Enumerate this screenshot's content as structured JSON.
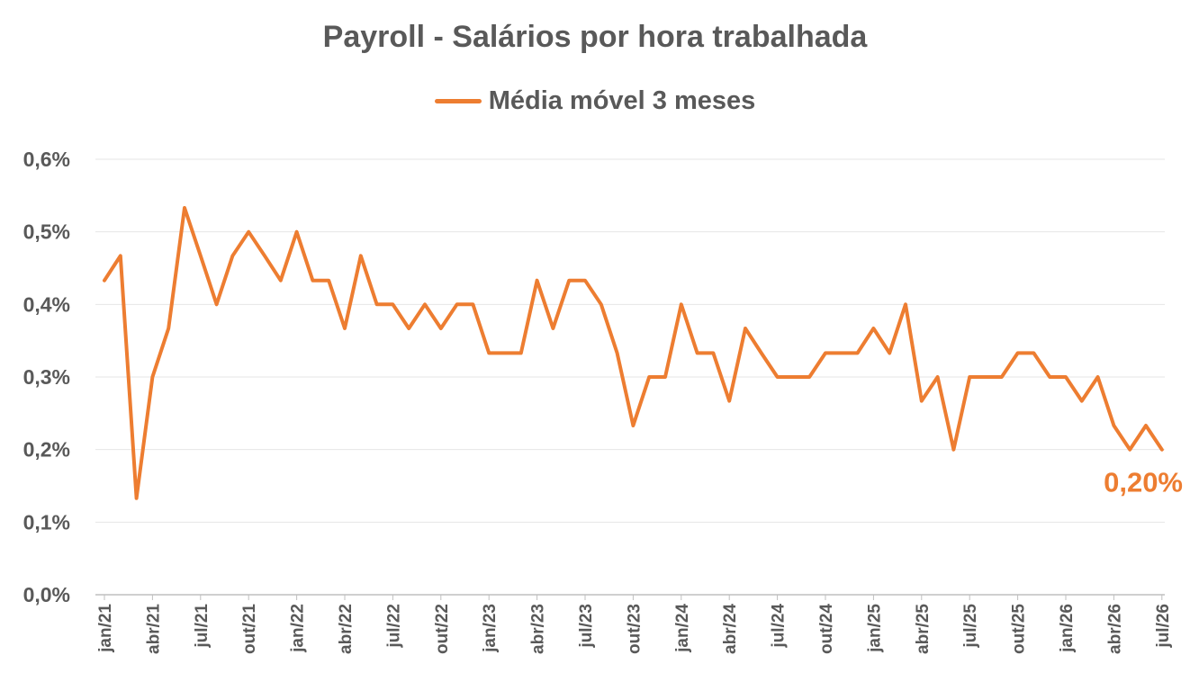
{
  "chart_data": {
    "type": "line",
    "title": "Payroll - Salários por hora trabalhada",
    "legend_position": "top-center",
    "grid": "horizontal",
    "y_tick_labels": [
      "0,0%",
      "0,1%",
      "0,2%",
      "0,3%",
      "0,4%",
      "0,5%",
      "0,6%"
    ],
    "ylim": [
      0,
      0.6
    ],
    "x_tick_labels": [
      "jan/21",
      "abr/21",
      "jul/21",
      "out/21",
      "jan/22",
      "abr/22",
      "jul/22",
      "out/22",
      "jan/23",
      "abr/23",
      "jul/23",
      "out/23",
      "jan/24",
      "abr/24",
      "jul/24",
      "out/24",
      "jan/25",
      "abr/25",
      "jul/25",
      "out/25",
      "jan/26",
      "abr/26",
      "jul/26"
    ],
    "series": [
      {
        "name": "Média móvel 3 meses",
        "color": "#ED7D31",
        "values": [
          0.433,
          0.467,
          0.133,
          0.3,
          0.367,
          0.533,
          0.467,
          0.4,
          0.467,
          0.5,
          0.467,
          0.433,
          0.5,
          0.433,
          0.433,
          0.367,
          0.467,
          0.4,
          0.4,
          0.367,
          0.4,
          0.367,
          0.4,
          0.4,
          0.333,
          0.333,
          0.333,
          0.433,
          0.367,
          0.433,
          0.433,
          0.4,
          0.333,
          0.233,
          0.3,
          0.3,
          0.4,
          0.333,
          0.333,
          0.267,
          0.367,
          0.333,
          0.3,
          0.3,
          0.3,
          0.333,
          0.333,
          0.333,
          0.367,
          0.333,
          0.4,
          0.267,
          0.3,
          0.2,
          0.3,
          0.3,
          0.3,
          0.333,
          0.333,
          0.3,
          0.3,
          0.267,
          0.3,
          0.233,
          0.2,
          0.233,
          0.2
        ]
      }
    ],
    "end_label": "0,20%"
  }
}
